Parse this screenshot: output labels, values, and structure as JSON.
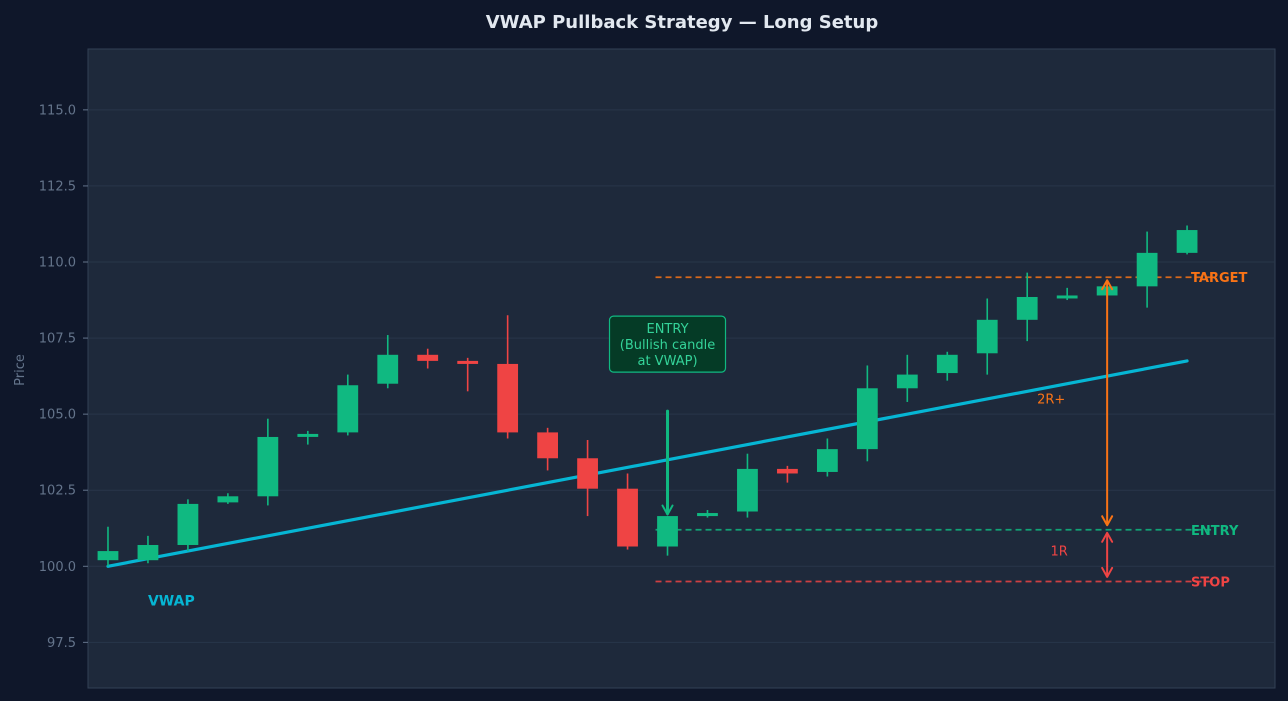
{
  "colors": {
    "page_bg": "#0f172a",
    "plot_bg": "#1e293b",
    "grid": "#28364a",
    "frame": "#334155",
    "tick_text": "#64748b",
    "title_text": "#e2e8f0",
    "bull": "#10b981",
    "bear": "#ef4444",
    "vwap": "#06b6d4",
    "target": "#f97316",
    "entry": "#10b981",
    "stop": "#ef4444",
    "callout_fill": "#053b26",
    "callout_text": "#34d399"
  },
  "chart_data": {
    "type": "candlestick",
    "title": "VWAP Pullback Strategy — Long Setup",
    "xlabel": "",
    "ylabel": "Price",
    "ylim": [
      96,
      117
    ],
    "xlim": [
      -0.5,
      29.2
    ],
    "yticks": [
      97.5,
      100.0,
      102.5,
      105.0,
      107.5,
      110.0,
      112.5,
      115.0
    ],
    "grid": true,
    "candles": [
      {
        "i": 0,
        "open": 100.2,
        "high": 101.3,
        "low": 100.0,
        "close": 100.5
      },
      {
        "i": 1,
        "open": 100.2,
        "high": 101.0,
        "low": 100.1,
        "close": 100.7
      },
      {
        "i": 2,
        "open": 100.7,
        "high": 102.2,
        "low": 100.5,
        "close": 102.05
      },
      {
        "i": 3,
        "open": 102.1,
        "high": 102.4,
        "low": 102.05,
        "close": 102.3
      },
      {
        "i": 4,
        "open": 102.3,
        "high": 104.85,
        "low": 102.0,
        "close": 104.25
      },
      {
        "i": 5,
        "open": 104.3,
        "high": 104.45,
        "low": 104.0,
        "close": 104.35
      },
      {
        "i": 6,
        "open": 104.4,
        "high": 106.3,
        "low": 104.3,
        "close": 105.95
      },
      {
        "i": 7,
        "open": 106.0,
        "high": 107.6,
        "low": 105.85,
        "close": 106.95
      },
      {
        "i": 8,
        "open": 106.95,
        "high": 107.15,
        "low": 106.5,
        "close": 106.75
      },
      {
        "i": 9,
        "open": 106.75,
        "high": 106.85,
        "low": 105.75,
        "close": 106.65
      },
      {
        "i": 10,
        "open": 106.65,
        "high": 108.25,
        "low": 104.2,
        "close": 104.4
      },
      {
        "i": 11,
        "open": 104.4,
        "high": 104.55,
        "low": 103.15,
        "close": 103.55
      },
      {
        "i": 12,
        "open": 103.55,
        "high": 104.15,
        "low": 101.65,
        "close": 102.55
      },
      {
        "i": 13,
        "open": 102.55,
        "high": 103.05,
        "low": 100.55,
        "close": 100.65
      },
      {
        "i": 14,
        "open": 100.65,
        "high": 101.65,
        "low": 100.35,
        "close": 101.65
      },
      {
        "i": 15,
        "open": 101.65,
        "high": 101.85,
        "low": 101.6,
        "close": 101.75
      },
      {
        "i": 16,
        "open": 101.8,
        "high": 103.7,
        "low": 101.6,
        "close": 103.2
      },
      {
        "i": 17,
        "open": 103.2,
        "high": 103.3,
        "low": 102.75,
        "close": 103.05
      },
      {
        "i": 18,
        "open": 103.1,
        "high": 104.2,
        "low": 102.95,
        "close": 103.85
      },
      {
        "i": 19,
        "open": 103.85,
        "high": 106.6,
        "low": 103.45,
        "close": 105.85
      },
      {
        "i": 20,
        "open": 105.85,
        "high": 106.95,
        "low": 105.4,
        "close": 106.3
      },
      {
        "i": 21,
        "open": 106.35,
        "high": 107.05,
        "low": 106.1,
        "close": 106.95
      },
      {
        "i": 22,
        "open": 107.0,
        "high": 108.8,
        "low": 106.3,
        "close": 108.1
      },
      {
        "i": 23,
        "open": 108.1,
        "high": 109.65,
        "low": 107.4,
        "close": 108.85
      },
      {
        "i": 24,
        "open": 108.85,
        "high": 109.15,
        "low": 108.75,
        "close": 108.9
      },
      {
        "i": 25,
        "open": 108.9,
        "high": 109.4,
        "low": 108.85,
        "close": 109.2
      },
      {
        "i": 26,
        "open": 109.2,
        "high": 111.0,
        "low": 108.5,
        "close": 110.3
      },
      {
        "i": 27,
        "open": 110.3,
        "high": 111.2,
        "low": 110.25,
        "close": 111.05
      }
    ],
    "vwap": {
      "label": "VWAP",
      "from": [
        0,
        100.0
      ],
      "to": [
        27,
        106.75
      ]
    },
    "levels": [
      {
        "label": "TARGET",
        "value": 109.5,
        "from_i": 13.7,
        "to_i": 27.6,
        "color_key": "target"
      },
      {
        "label": "ENTRY",
        "value": 101.2,
        "from_i": 13.7,
        "to_i": 27.6,
        "color_key": "entry"
      },
      {
        "label": "STOP",
        "value": 99.5,
        "from_i": 13.7,
        "to_i": 27.6,
        "color_key": "stop"
      }
    ],
    "entry_callout": {
      "lines": [
        "ENTRY",
        "(Bullish candle",
        "at VWAP)"
      ],
      "box_center": [
        14,
        107.3
      ],
      "arrow_from": [
        14,
        105.1
      ],
      "arrow_to": [
        14,
        101.7
      ]
    },
    "reward_arrow": {
      "x": 25,
      "from": 101.35,
      "to": 109.4,
      "label": "2R+",
      "label_at": [
        23.6,
        105.35
      ]
    },
    "risk_arrow": {
      "x": 25,
      "from": 101.1,
      "to": 99.65,
      "label": "1R",
      "label_at": [
        23.8,
        100.35
      ]
    }
  }
}
